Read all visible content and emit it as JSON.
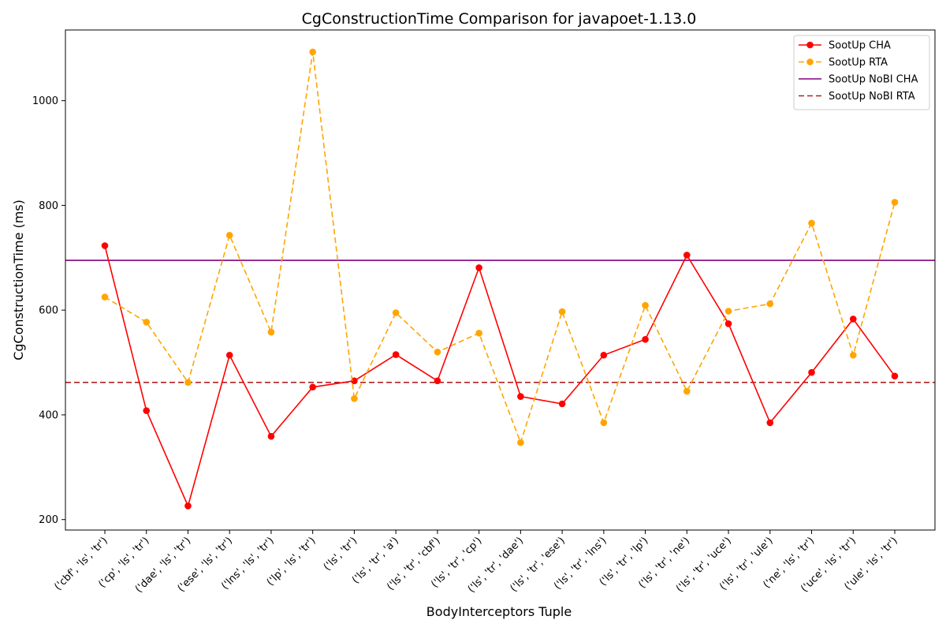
{
  "chart_data": {
    "type": "line",
    "title": "CgConstructionTime Comparison for javapoet-1.13.0",
    "xlabel": "BodyInterceptors Tuple",
    "ylabel": "CgConstructionTime (ms)",
    "ylim": [
      180,
      1135
    ],
    "yticks": [
      200,
      400,
      600,
      800,
      1000
    ],
    "grid": false,
    "legend_position": "top-right",
    "categories": [
      "('cbf', 'ls', 'tr')",
      "('cp', 'ls', 'tr')",
      "('dae', 'ls', 'tr')",
      "('ese', 'ls', 'tr')",
      "('lns', 'ls', 'tr')",
      "('lp', 'ls', 'tr')",
      "('ls', 'tr')",
      "('ls', 'tr', 'a')",
      "('ls', 'tr', 'cbf')",
      "('ls', 'tr', 'cp')",
      "('ls', 'tr', 'dae')",
      "('ls', 'tr', 'ese')",
      "('ls', 'tr', 'lns')",
      "('ls', 'tr', 'lp')",
      "('ls', 'tr', 'ne')",
      "('ls', 'tr', 'uce')",
      "('ls', 'tr', 'ule')",
      "('ne', 'ls', 'tr')",
      "('uce', 'ls', 'tr')",
      "('ule', 'ls', 'tr')"
    ],
    "series": [
      {
        "name": "SootUp CHA",
        "color": "#ff0000",
        "style": "solid",
        "marker": "circle",
        "values": [
          723,
          408,
          226,
          514,
          359,
          453,
          465,
          515,
          465,
          681,
          435,
          421,
          514,
          544,
          705,
          574,
          385,
          481,
          583,
          474
        ]
      },
      {
        "name": "SootUp RTA",
        "color": "#ffa500",
        "style": "dashed",
        "marker": "circle",
        "values": [
          625,
          577,
          462,
          743,
          558,
          1093,
          431,
          595,
          520,
          556,
          347,
          597,
          385,
          609,
          445,
          598,
          612,
          766,
          514,
          806
        ]
      }
    ],
    "reference_lines": [
      {
        "name": "SootUp NoBI CHA",
        "color": "#800080",
        "style": "solid",
        "value": 695
      },
      {
        "name": "SootUp NoBI RTA",
        "color": "#b22222",
        "style": "dashed",
        "value": 462
      }
    ]
  }
}
